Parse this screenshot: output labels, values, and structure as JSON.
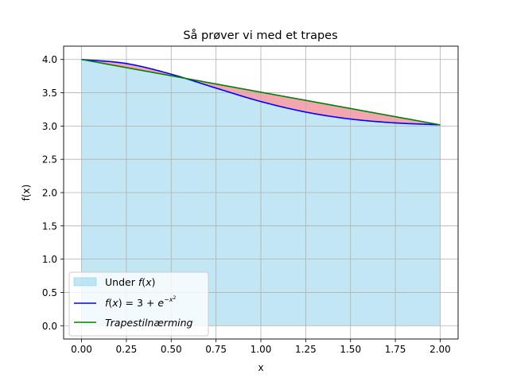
{
  "chart_data": {
    "type": "area",
    "title": "Så prøver vi med et trapes",
    "xlabel": "x",
    "ylabel": "f(x)",
    "xlim": [
      -0.1,
      2.1
    ],
    "ylim": [
      -0.2,
      4.2
    ],
    "xticks": [
      "0.00",
      "0.25",
      "0.50",
      "0.75",
      "1.00",
      "1.25",
      "1.50",
      "1.75",
      "2.00"
    ],
    "yticks": [
      "0.0",
      "0.5",
      "1.0",
      "1.5",
      "2.0",
      "2.5",
      "3.0",
      "3.5",
      "4.0"
    ],
    "grid": true,
    "legend_position": "lower-left",
    "series": [
      {
        "name": "Under f(x)",
        "kind": "fill",
        "color": "#87ceeb",
        "x": [
          0.0,
          0.25,
          0.5,
          0.75,
          1.0,
          1.25,
          1.5,
          1.75,
          2.0
        ],
        "y": [
          4.0,
          3.939,
          3.779,
          3.57,
          3.368,
          3.21,
          3.105,
          3.047,
          3.018
        ]
      },
      {
        "name": "f(x) = 3 + e^{-x²}",
        "kind": "line",
        "color": "#0000ff",
        "x": [
          0.0,
          0.25,
          0.5,
          0.75,
          1.0,
          1.25,
          1.5,
          1.75,
          2.0
        ],
        "y": [
          4.0,
          3.939,
          3.779,
          3.57,
          3.368,
          3.21,
          3.105,
          3.047,
          3.018
        ]
      },
      {
        "name": "Trapestilnærming",
        "kind": "line",
        "color": "#008000",
        "x": [
          0.0,
          2.0
        ],
        "y": [
          4.0,
          3.018
        ]
      }
    ],
    "error_fill_color": "#f4a6b0",
    "legend": {
      "entries": [
        {
          "label": "Under f(x)",
          "type": "patch",
          "color": "#87ceeb"
        },
        {
          "label": "f(x) = 3 + e^{-x²}",
          "type": "line",
          "color": "#0000ff"
        },
        {
          "label": "Trapestilnærming",
          "type": "line",
          "color": "#008000"
        }
      ]
    }
  }
}
